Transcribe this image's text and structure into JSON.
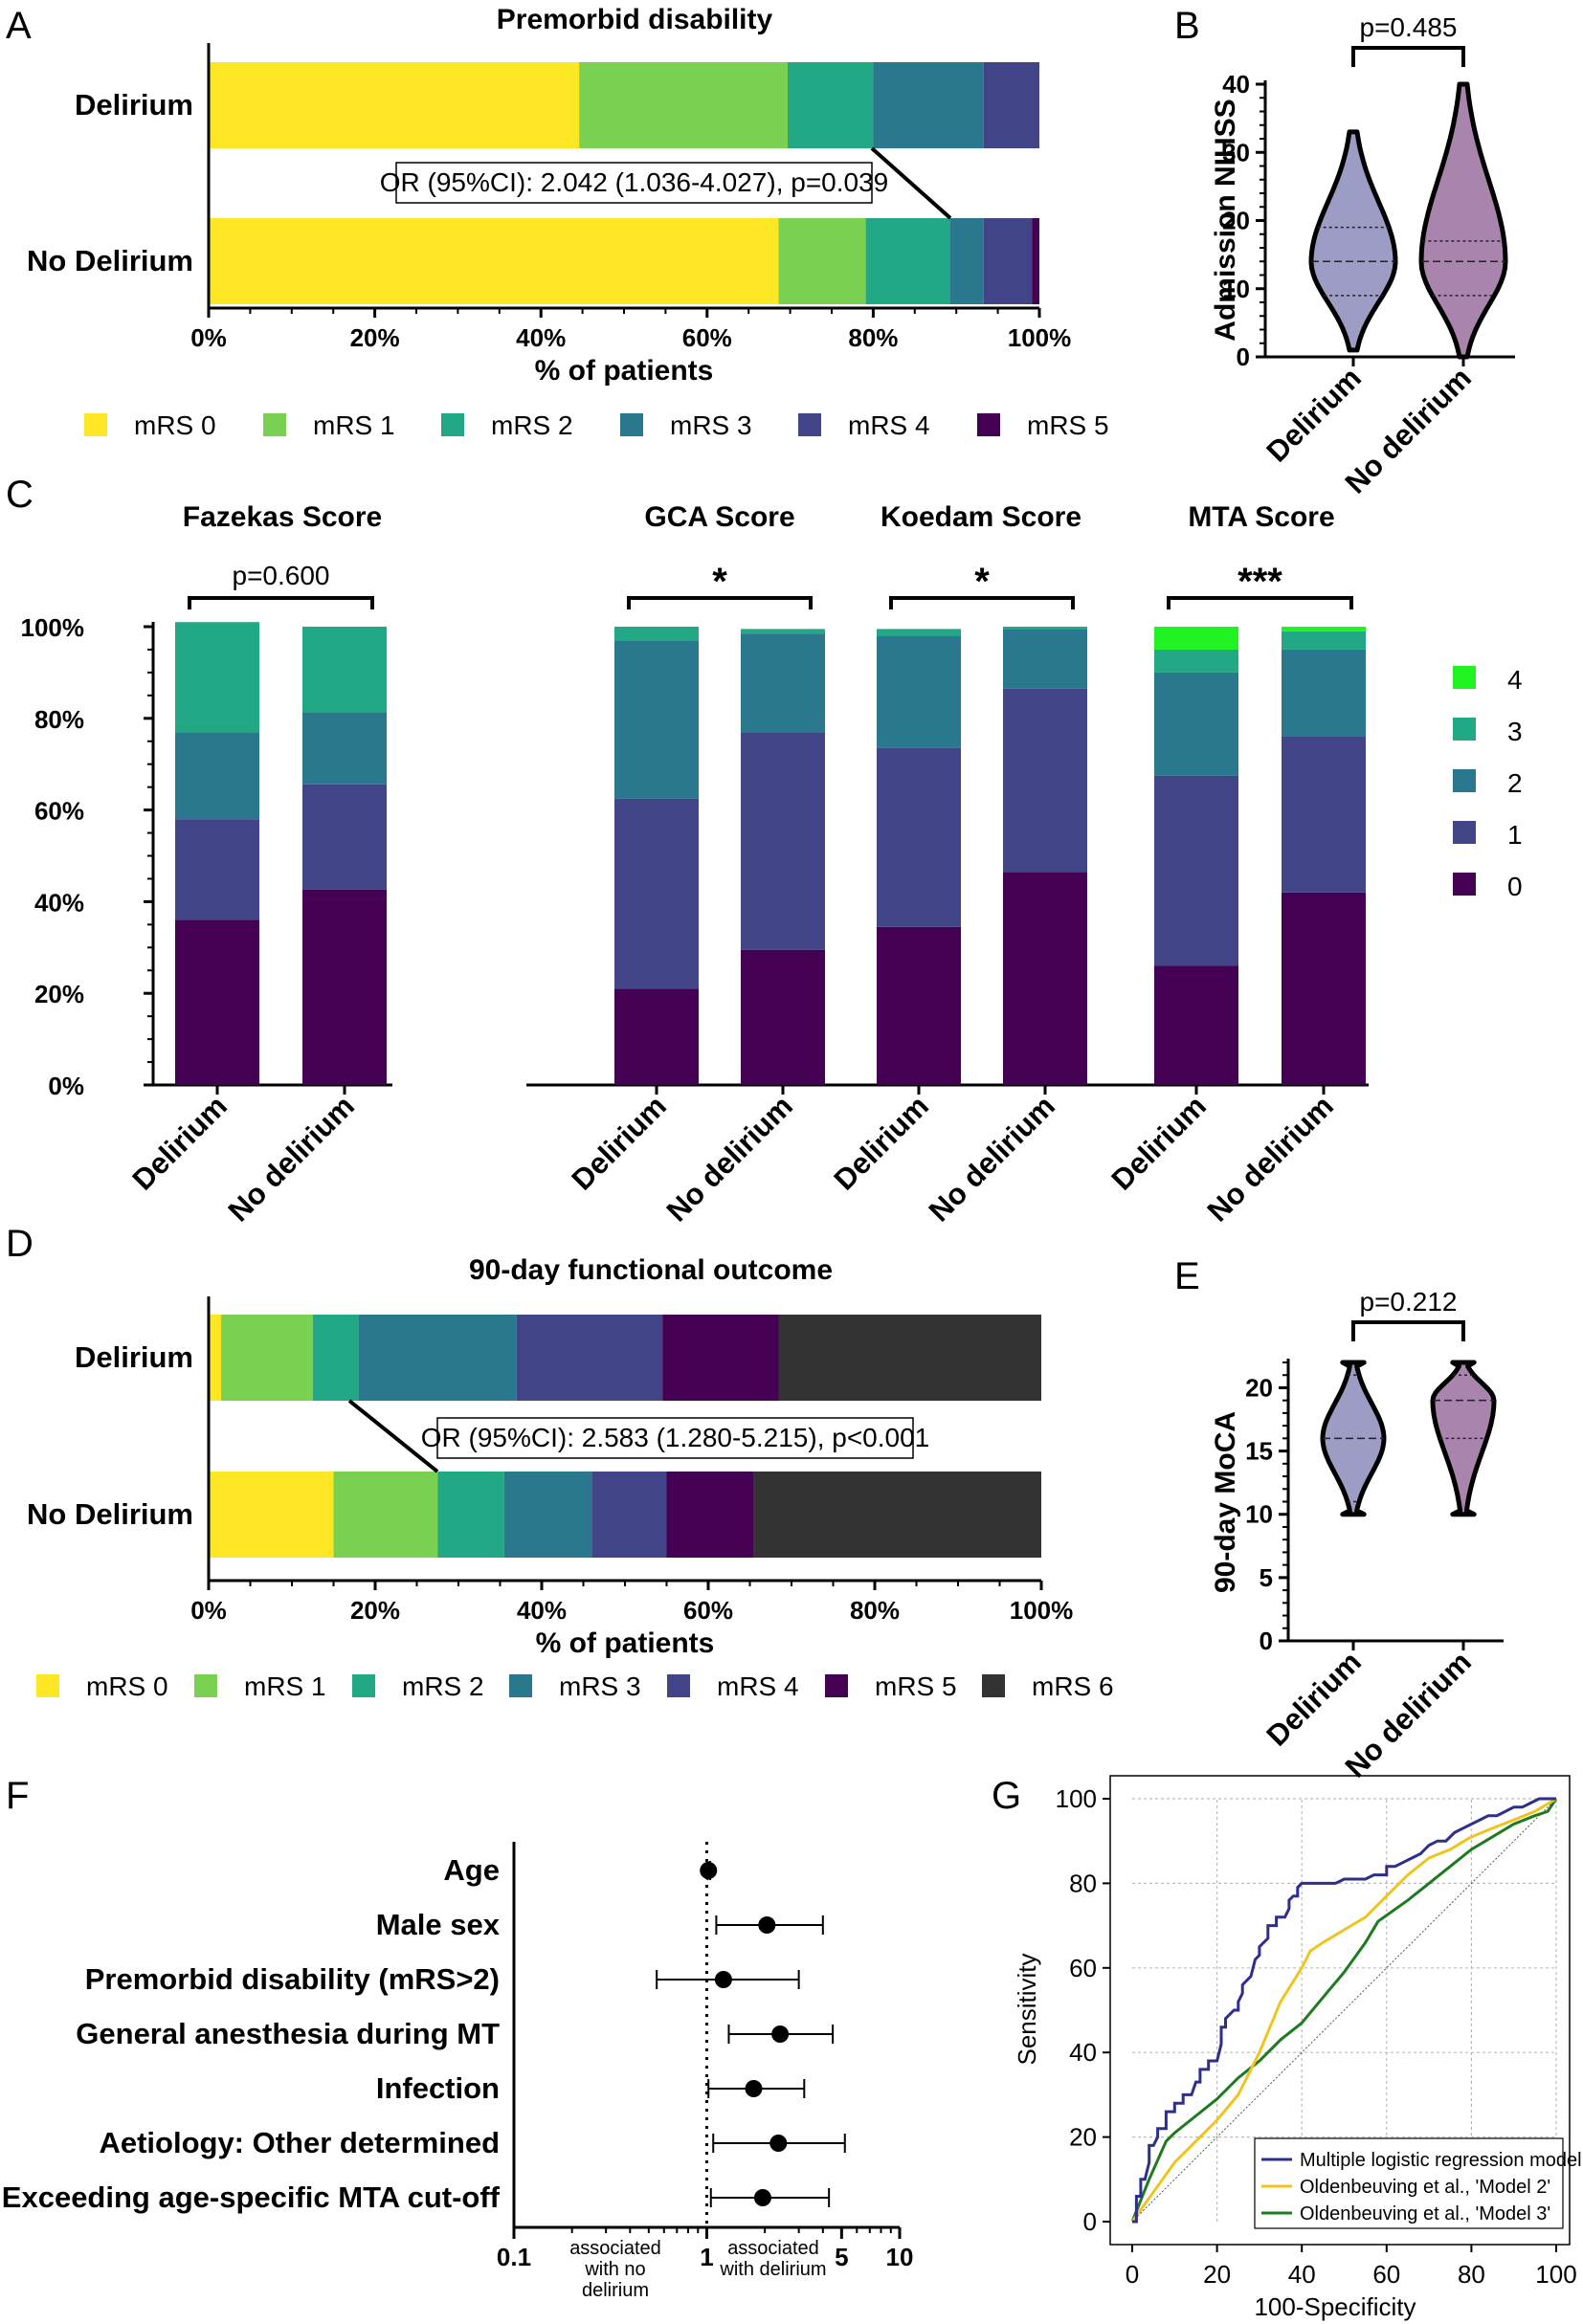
{
  "panel_letters": [
    "A",
    "B",
    "C",
    "D",
    "E",
    "F",
    "G"
  ],
  "chart_data": [
    {
      "id": "A",
      "type": "bar",
      "orientation": "horizontal",
      "stacked": true,
      "title": "Premorbid disability",
      "categories": [
        "Delirium",
        "No Delirium"
      ],
      "series": [
        {
          "name": "mRS 0",
          "color": "#FDE725",
          "values": [
            44.6,
            68.6
          ]
        },
        {
          "name": "mRS 1",
          "color": "#7AD151",
          "values": [
            25.1,
            10.5
          ]
        },
        {
          "name": "mRS 2",
          "color": "#22A884",
          "values": [
            10.3,
            10.1
          ]
        },
        {
          "name": "mRS 3",
          "color": "#2A788E",
          "values": [
            13.3,
            4.1
          ]
        },
        {
          "name": "mRS 4",
          "color": "#414487",
          "values": [
            6.7,
            5.8
          ]
        },
        {
          "name": "mRS 5",
          "color": "#440154",
          "values": [
            0,
            0.9
          ]
        }
      ],
      "xlabel": "% of patients",
      "xticks": [
        "0%",
        "20%",
        "40%",
        "60%",
        "80%",
        "100%"
      ],
      "xlim": [
        0,
        100
      ],
      "annotation": "OR (95%CI): 2.042 (1.036-4.027), p=0.039"
    },
    {
      "id": "B",
      "type": "violin",
      "categories": [
        "Delirium",
        "No delirium"
      ],
      "ylabel": "Admission NIHSS",
      "ylim": [
        0,
        40
      ],
      "yticks": [
        "0",
        "10",
        "20",
        "30",
        "40"
      ],
      "pvalue": "p=0.485",
      "series": [
        {
          "name": "Delirium",
          "color": "#9D9CC5",
          "min": 1,
          "q1": 9,
          "median": 14,
          "q3": 19,
          "max": 33
        },
        {
          "name": "No delirium",
          "color": "#A985AD",
          "min": 0,
          "q1": 9,
          "median": 14,
          "q3": 17,
          "max": 40
        }
      ]
    },
    {
      "id": "C",
      "type": "bar",
      "stacked": true,
      "titles": [
        "Fazekas Score",
        "GCA Score",
        "Koedam Score",
        "MTA Score"
      ],
      "categories": [
        "Delirium",
        "No delirium"
      ],
      "significance": [
        "p=0.600",
        "*",
        "*",
        "***"
      ],
      "yticks": [
        "0%",
        "20%",
        "40%",
        "60%",
        "80%",
        "100%"
      ],
      "ylim": [
        0,
        100
      ],
      "legend": [
        {
          "name": "4",
          "color": "#21F221"
        },
        {
          "name": "3",
          "color": "#22A884"
        },
        {
          "name": "2",
          "color": "#2A788E"
        },
        {
          "name": "1",
          "color": "#414487"
        },
        {
          "name": "0",
          "color": "#440154"
        }
      ],
      "groups": [
        {
          "name": "Fazekas Score",
          "bars": [
            [
              36,
              22,
              19,
              24,
              0
            ],
            [
              42.6,
              23,
              15.7,
              18.7,
              0
            ]
          ]
        },
        {
          "name": "GCA Score",
          "bars": [
            [
              21,
              41.5,
              34.5,
              3,
              0
            ],
            [
              29.5,
              47.5,
              21.5,
              1,
              0
            ]
          ]
        },
        {
          "name": "Koedam Score",
          "bars": [
            [
              34.5,
              39,
              24.5,
              1.5,
              0
            ],
            [
              46.5,
              40,
              13,
              0.5,
              0
            ]
          ]
        },
        {
          "name": "MTA Score",
          "bars": [
            [
              26,
              41.5,
              22.5,
              5,
              5
            ],
            [
              42,
              34,
              19,
              4,
              1
            ]
          ]
        }
      ]
    },
    {
      "id": "D",
      "type": "bar",
      "orientation": "horizontal",
      "stacked": true,
      "title": "90-day functional outcome",
      "categories": [
        "Delirium",
        "No Delirium"
      ],
      "series": [
        {
          "name": "mRS 0",
          "color": "#FDE725",
          "values": [
            1.5,
            15
          ]
        },
        {
          "name": "mRS 1",
          "color": "#7AD151",
          "values": [
            11,
            12.5
          ]
        },
        {
          "name": "mRS 2",
          "color": "#22A884",
          "values": [
            5.5,
            8
          ]
        },
        {
          "name": "mRS 3",
          "color": "#2A788E",
          "values": [
            19,
            10.5
          ]
        },
        {
          "name": "mRS 4",
          "color": "#414487",
          "values": [
            17.5,
            9
          ]
        },
        {
          "name": "mRS 5",
          "color": "#440154",
          "values": [
            14,
            10.5
          ]
        },
        {
          "name": "mRS 6",
          "color": "#333333",
          "values": [
            31.5,
            34.5
          ]
        }
      ],
      "xlabel": "% of patients",
      "xticks": [
        "0%",
        "20%",
        "40%",
        "60%",
        "80%",
        "100%"
      ],
      "xlim": [
        0,
        100
      ],
      "annotation": "OR (95%CI): 2.583 (1.280-5.215), p<0.001"
    },
    {
      "id": "E",
      "type": "violin",
      "categories": [
        "Delirium",
        "No delirium"
      ],
      "ylabel": "90-day MoCA",
      "ylim": [
        0,
        22
      ],
      "yticks": [
        "0",
        "5",
        "10",
        "15",
        "20"
      ],
      "pvalue": "p=0.212",
      "series": [
        {
          "name": "Delirium",
          "color": "#9D9CC5",
          "min": 10,
          "q1": 11,
          "median": 16,
          "q3": 21,
          "max": 22
        },
        {
          "name": "No delirium",
          "color": "#A985AD",
          "min": 10,
          "q1": 16,
          "median": 19,
          "q3": 21,
          "max": 22
        }
      ]
    },
    {
      "id": "F",
      "type": "scatter",
      "subtype": "forest",
      "xscale": "log",
      "labels": [
        "Age",
        "Male sex",
        "Premorbid disability (mRS>2)",
        "General anesthesia during MT",
        "Infection",
        "Aetiology: Other determined",
        "Exceeding age-specific MTA cut-off"
      ],
      "or": [
        1.02,
        2.05,
        1.22,
        2.4,
        1.75,
        2.35,
        1.95
      ],
      "ci_low": [
        1.01,
        1.12,
        0.55,
        1.3,
        1.02,
        1.08,
        1.05
      ],
      "ci_high": [
        1.04,
        4.0,
        3.0,
        4.5,
        3.2,
        5.2,
        4.3
      ],
      "xticks": [
        "0.1",
        "1",
        "5",
        "10"
      ],
      "xlim": [
        0.1,
        10
      ],
      "left_note": "associated with no delirium",
      "right_note": "associated with delirium"
    },
    {
      "id": "G",
      "type": "line",
      "subtype": "roc",
      "xlabel": "100-Specificity",
      "ylabel": "Sensitivity",
      "xlim": [
        0,
        100
      ],
      "ylim": [
        0,
        100
      ],
      "xticks": [
        "0",
        "20",
        "40",
        "60",
        "80",
        "100"
      ],
      "yticks": [
        "0",
        "20",
        "40",
        "60",
        "80",
        "100"
      ],
      "series": [
        {
          "name": "Multiple logistic regression model",
          "color": "#2E2E8B",
          "x": [
            0,
            1,
            1,
            2,
            2,
            3,
            4,
            4,
            5,
            6,
            6,
            8,
            8,
            10,
            10,
            12,
            12,
            14,
            15,
            16,
            16,
            18,
            18,
            20,
            21,
            21,
            22,
            22,
            24,
            25,
            25,
            26,
            26,
            28,
            29,
            30,
            30,
            32,
            32,
            34,
            34,
            36,
            37,
            37,
            38,
            39,
            39,
            40,
            41,
            42,
            44,
            46,
            48,
            50,
            52,
            54,
            55,
            57,
            58,
            60,
            60,
            62,
            64,
            66,
            68,
            69,
            70,
            72,
            74,
            76,
            78,
            80,
            82,
            84,
            86,
            88,
            90,
            92,
            94,
            96,
            98,
            100
          ],
          "y": [
            0,
            0,
            6,
            6,
            10,
            10,
            14,
            18,
            18,
            20,
            22,
            22,
            26,
            26,
            28,
            28,
            30,
            30,
            33,
            33,
            36,
            36,
            38,
            38,
            42,
            46,
            46,
            48,
            50,
            50,
            52,
            54,
            56,
            58,
            62,
            63,
            65,
            67,
            70,
            70,
            72,
            72,
            74,
            76,
            77,
            77,
            79,
            80,
            80,
            80,
            80,
            80,
            80,
            81,
            81,
            81,
            81,
            82,
            82,
            82,
            84,
            84,
            85,
            86,
            87,
            88,
            89,
            90,
            90,
            92,
            93,
            94,
            95,
            96,
            96,
            97,
            98,
            98,
            99,
            100,
            100,
            100
          ]
        },
        {
          "name": "Oldenbeuving et al., 'Model 2'",
          "color": "#F0C41E",
          "x": [
            0,
            5,
            10,
            15,
            20,
            25,
            30,
            35,
            40,
            42,
            45,
            50,
            55,
            60,
            65,
            70,
            75,
            80,
            85,
            90,
            95,
            100
          ],
          "y": [
            0,
            7,
            14,
            19,
            24,
            30,
            40,
            52,
            60,
            64,
            66,
            69,
            72,
            77,
            82,
            86,
            88,
            91,
            93,
            95,
            97,
            100
          ]
        },
        {
          "name": "Oldenbeuving et al., 'Model 3'",
          "color": "#1E7A1E",
          "x": [
            0,
            4,
            8,
            10,
            15,
            20,
            25,
            30,
            35,
            40,
            45,
            50,
            55,
            58,
            65,
            70,
            75,
            80,
            85,
            90,
            95,
            98,
            100
          ],
          "y": [
            0,
            10,
            19,
            21,
            25,
            29,
            34,
            38,
            43,
            47,
            53,
            59,
            66,
            71,
            76,
            80,
            84,
            88,
            91,
            94,
            96,
            97,
            100
          ]
        },
        {
          "name": "reference",
          "color": "#555555",
          "x": [
            0,
            100
          ],
          "y": [
            0,
            100
          ]
        }
      ]
    }
  ]
}
